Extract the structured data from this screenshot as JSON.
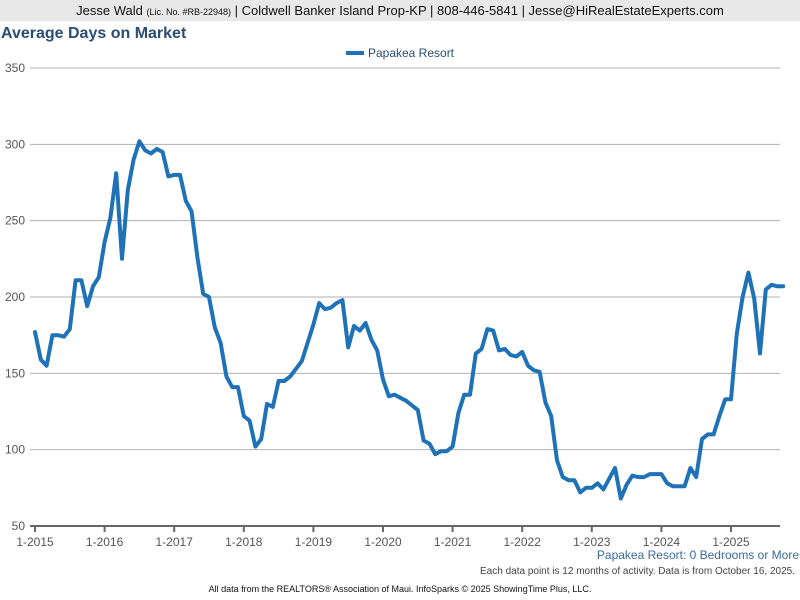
{
  "header": {
    "name": "Jesse Wald",
    "license": "(Lic. No. #RB-22948)",
    "rest": "| Coldwell Banker Island Prop-KP | 808-446-5841 | Jesse@HiRealEstateExperts.com"
  },
  "footer": {
    "subtitle": "Papakea Resort: 0 Bedrooms or More",
    "note": "Each data point is 12 months of activity. Data is from October 16, 2025.",
    "credit": "All data from the REALTORS® Association of Maui. InfoSparks © 2025 ShowingTime Plus, LLC."
  },
  "colors": {
    "line": "#1f72b8",
    "title": "#2a4d74",
    "grid": "#b0b0b0"
  },
  "chart_data": {
    "type": "line",
    "title": "Average Days on Market",
    "xlabel": "",
    "ylabel": "",
    "ylim": [
      50,
      350
    ],
    "yticks": [
      50,
      100,
      150,
      200,
      250,
      300,
      350
    ],
    "xticks": [
      "1-2015",
      "1-2016",
      "1-2017",
      "1-2018",
      "1-2019",
      "1-2020",
      "1-2021",
      "1-2022",
      "1-2023",
      "1-2024",
      "1-2025"
    ],
    "grid": true,
    "legend_position": "top-center",
    "x_start": "1-2015",
    "x_step": "1 month",
    "series": [
      {
        "name": "Papakea Resort",
        "values": [
          177,
          159,
          155,
          175,
          175,
          174,
          179,
          211,
          211,
          194,
          207,
          213,
          236,
          252,
          281,
          225,
          270,
          290,
          302,
          296,
          294,
          297,
          295,
          279,
          280,
          280,
          263,
          256,
          226,
          202,
          200,
          180,
          170,
          148,
          141,
          141,
          122,
          119,
          102,
          107,
          130,
          128,
          145,
          145,
          148,
          153,
          158,
          170,
          182,
          196,
          192,
          193,
          196,
          198,
          167,
          181,
          178,
          183,
          172,
          165,
          146,
          135,
          136,
          134,
          132,
          129,
          126,
          106,
          104,
          97,
          99,
          99,
          102,
          124,
          136,
          136,
          163,
          166,
          179,
          178,
          165,
          166,
          162,
          161,
          164,
          155,
          152,
          151,
          131,
          122,
          93,
          82,
          80,
          80,
          72,
          75,
          75,
          78,
          74,
          81,
          88,
          68,
          77,
          83,
          82,
          82,
          84,
          84,
          84,
          78,
          76,
          76,
          76,
          88,
          82,
          107,
          110,
          110,
          122,
          133,
          133,
          176,
          200,
          216,
          199,
          163,
          205,
          208,
          207,
          207
        ]
      }
    ]
  }
}
